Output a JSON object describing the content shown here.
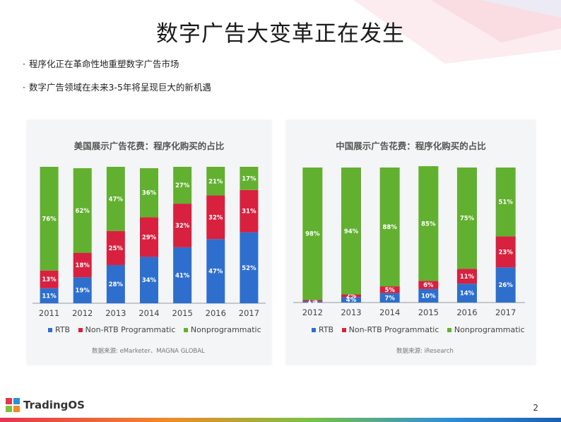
{
  "slide": {
    "title": "数字广告大变革正在发生",
    "bullets": [
      "程序化正在革命性地重塑数字广告市场",
      "数字广告领域在未来3-5年将呈现巨大的新机遇"
    ],
    "page_number": "2",
    "logo_text": "TradingOS"
  },
  "legend": {
    "rtb": "RTB",
    "non_rtb": "Non-RTB Programmatic",
    "nonprog": "Nonprogrammatic"
  },
  "colors": {
    "rtb": "#2e6fce",
    "non_rtb": "#d8203f",
    "nonprog": "#62b02f"
  },
  "chart_data": [
    {
      "type": "bar",
      "stacked": true,
      "title": "美国展示广告花费：程序化购买的占比",
      "source": "数据来源: eMarketer、MAGNA GLOBAL",
      "categories": [
        "2011",
        "2012",
        "2013",
        "2014",
        "2015",
        "2016",
        "2017"
      ],
      "ylim": [
        0,
        100
      ],
      "series": [
        {
          "name": "RTB",
          "values": [
            11,
            19,
            28,
            34,
            41,
            47,
            52
          ],
          "labels": [
            "11%",
            "19%",
            "28%",
            "34%",
            "41%",
            "47%",
            "52%"
          ]
        },
        {
          "name": "Non-RTB Programmatic",
          "values": [
            13,
            18,
            25,
            29,
            32,
            32,
            31
          ],
          "labels": [
            "13%",
            "18%",
            "25%",
            "29%",
            "32%",
            "32%",
            "31%"
          ]
        },
        {
          "name": "Nonprogrammatic",
          "values": [
            76,
            62,
            47,
            36,
            27,
            21,
            17
          ],
          "labels": [
            "76%",
            "62%",
            "47%",
            "36%",
            "27%",
            "21%",
            "17%"
          ]
        }
      ]
    },
    {
      "type": "bar",
      "stacked": true,
      "title": "中国展示广告花费：程序化购买的占比",
      "source": "数据来源: iResearch",
      "categories": [
        "2012",
        "2013",
        "2014",
        "2015",
        "2016",
        "2017"
      ],
      "ylim": [
        0,
        100
      ],
      "series": [
        {
          "name": "RTB",
          "values": [
            1,
            4,
            7,
            10,
            14,
            26
          ],
          "labels": [
            "1%",
            "4%",
            "7%",
            "10%",
            "14%",
            "26%"
          ]
        },
        {
          "name": "Non-RTB Programmatic",
          "values": [
            1,
            2,
            5,
            6,
            11,
            23
          ],
          "labels": [
            "1%",
            "2%",
            "5%",
            "6%",
            "11%",
            "23%"
          ]
        },
        {
          "name": "Nonprogrammatic",
          "values": [
            98,
            94,
            88,
            85,
            75,
            51
          ],
          "labels": [
            "98%",
            "94%",
            "88%",
            "85%",
            "75%",
            "51%"
          ]
        }
      ]
    }
  ]
}
